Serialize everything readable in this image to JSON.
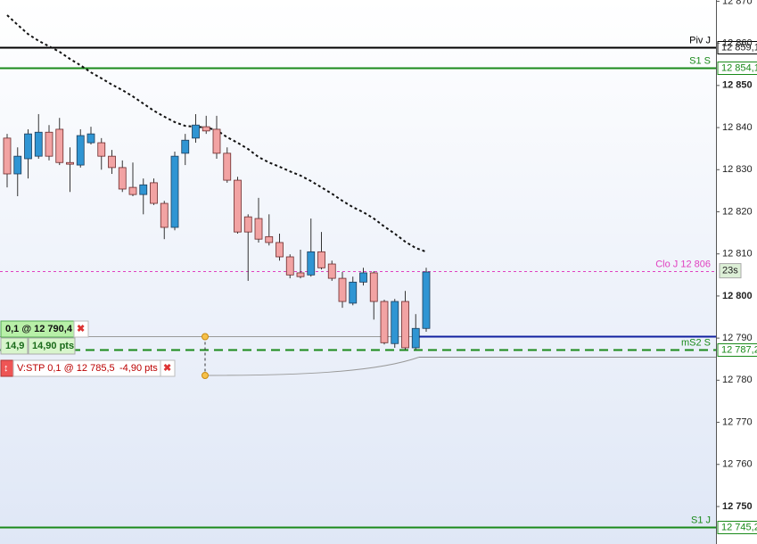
{
  "chart_data": {
    "type": "candlestick",
    "ylim": [
      12741.1,
      12870.3
    ],
    "yticks": [
      {
        "value": 12870,
        "label": "12 870"
      },
      {
        "value": 12860,
        "label": "12 860"
      },
      {
        "value": 12850,
        "label": "12 850"
      },
      {
        "value": 12840,
        "label": "12 840"
      },
      {
        "value": 12830,
        "label": "12 830"
      },
      {
        "value": 12820,
        "label": "12 820"
      },
      {
        "value": 12810,
        "label": "12 810"
      },
      {
        "value": 12800,
        "label": "12 800"
      },
      {
        "value": 12790,
        "label": "12 790"
      },
      {
        "value": 12780,
        "label": "12 780"
      },
      {
        "value": 12770,
        "label": "12 770"
      },
      {
        "value": 12760,
        "label": "12 760"
      },
      {
        "value": 12750,
        "label": "12 750"
      }
    ],
    "up_color": "#2f95d3",
    "down_color": "#f2a3a3",
    "open": [
      12837.5,
      12829.0,
      12832.6,
      12833.2,
      12838.9,
      12839.6,
      12831.7,
      12831.1,
      12836.4,
      12836.4,
      12833.2,
      12830.5,
      12825.8,
      12824.1,
      12826.9,
      12822.0,
      12816.3,
      12833.9,
      12837.5,
      12840.2,
      12839.6,
      12833.9,
      12827.5,
      12818.8,
      12818.4,
      12814.1,
      12812.7,
      12809.3,
      12805.5,
      12805.0,
      12810.5,
      12807.6,
      12804.2,
      12798.3,
      12803.3,
      12805.5,
      12798.7,
      12788.7,
      12798.7,
      12787.7,
      12792.3
    ],
    "high": [
      12838.5,
      12835.3,
      12839.6,
      12843.2,
      12840.6,
      12842.3,
      12835.3,
      12839.6,
      12840.2,
      12837.5,
      12834.7,
      12832.2,
      12831.7,
      12827.9,
      12827.9,
      12822.6,
      12834.3,
      12838.5,
      12843.2,
      12842.8,
      12842.8,
      12835.3,
      12828.3,
      12819.4,
      12823.3,
      12819.4,
      12814.8,
      12809.9,
      12811.0,
      12818.4,
      12815.2,
      12808.4,
      12805.7,
      12804.6,
      12806.7,
      12805.9,
      12799.1,
      12799.3,
      12801.2,
      12795.7,
      12806.7
    ],
    "low": [
      12825.8,
      12823.7,
      12827.9,
      12832.6,
      12832.2,
      12831.1,
      12824.7,
      12830.5,
      12836.0,
      12830.0,
      12829.0,
      12824.7,
      12823.7,
      12819.4,
      12821.6,
      12813.5,
      12815.6,
      12831.1,
      12836.4,
      12838.5,
      12832.6,
      12826.9,
      12814.8,
      12803.6,
      12812.7,
      12812.0,
      12808.4,
      12804.2,
      12804.2,
      12804.6,
      12806.3,
      12803.6,
      12797.2,
      12797.8,
      12802.5,
      12794.4,
      12788.5,
      12787.7,
      12787.2,
      12787.2,
      12791.5
    ],
    "close": [
      12829.0,
      12833.2,
      12838.5,
      12838.9,
      12833.2,
      12831.7,
      12831.3,
      12838.1,
      12838.5,
      12833.2,
      12830.5,
      12825.4,
      12824.1,
      12826.4,
      12822.0,
      12816.3,
      12833.2,
      12837.0,
      12840.6,
      12839.2,
      12833.9,
      12827.5,
      12815.2,
      12815.2,
      12813.5,
      12812.7,
      12809.3,
      12805.0,
      12804.6,
      12810.5,
      12806.7,
      12804.2,
      12798.7,
      12803.3,
      12805.5,
      12798.7,
      12788.9,
      12798.7,
      12787.7,
      12792.3,
      12805.7
    ],
    "moving_average": {
      "color": "#111111",
      "values": [
        12866.7,
        12864.4,
        12862.2,
        12860.6,
        12859.3,
        12858.0,
        12856.3,
        12854.8,
        12853.1,
        12851.7,
        12850.2,
        12848.9,
        12847.4,
        12845.7,
        12844.0,
        12842.6,
        12841.3,
        12840.4,
        12840.2,
        12840.0,
        12839.4,
        12837.7,
        12836.4,
        12834.9,
        12833.0,
        12831.7,
        12830.7,
        12829.6,
        12828.6,
        12827.3,
        12825.8,
        12824.3,
        12822.6,
        12821.1,
        12819.9,
        12818.4,
        12816.5,
        12814.8,
        12812.9,
        12811.4,
        12810.5
      ]
    },
    "levels": [
      {
        "label": "Piv J",
        "value": 12859.1,
        "value_label": "12 859,1",
        "color": "#000000",
        "dashed": false
      },
      {
        "label": "S1 S",
        "value": 12854.1,
        "value_label": "12 854,1",
        "color": "#1a8a1a",
        "dashed": false
      },
      {
        "label": "Clo J 12 806",
        "value": 12806,
        "color": "#e040c0",
        "dashed": true
      },
      {
        "label": "mS2 S",
        "value": 12787.2,
        "value_label": "12 787,2",
        "color": "#1a8a1a",
        "dashed": true
      },
      {
        "label": "S1 J",
        "value": 12745.2,
        "value_label": "12 745,2",
        "color": "#1a8a1a",
        "dashed": false
      }
    ],
    "timer": "23s"
  },
  "orders": {
    "entry": {
      "label": "0,1 @ 12 790,4",
      "value": 12790.4,
      "points": "14,9",
      "points_label": "14,90 pts"
    },
    "stop": {
      "label": "V:STP 0,1 @ 12 785,5",
      "value": 12785.5,
      "points_label": "-4,90 pts"
    }
  }
}
